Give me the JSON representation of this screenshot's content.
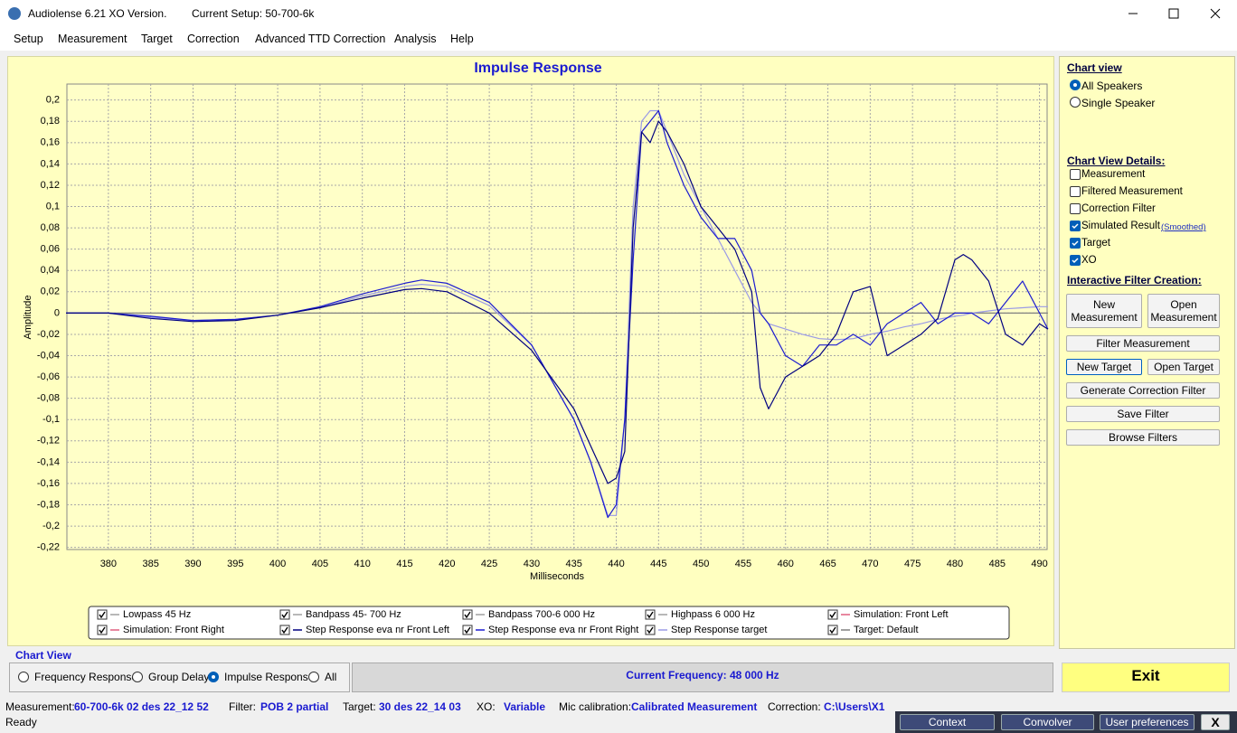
{
  "window": {
    "title": "Audiolense 6.21 XO Version.",
    "setup": "Current Setup: 50-700-6k"
  },
  "menu": [
    "Setup",
    "Measurement",
    "Target",
    "Correction",
    "Advanced TTD Correction",
    "Analysis",
    "Help"
  ],
  "chart_data": {
    "type": "line",
    "title": "Impulse Response",
    "x_label": "Milliseconds",
    "y_label": "Amplitude",
    "xlim": [
      375.1,
      490.9
    ],
    "ylim": [
      -0.222,
      0.215
    ],
    "xticks": [
      380,
      385,
      390,
      395,
      400,
      405,
      410,
      415,
      420,
      425,
      430,
      435,
      440,
      445,
      450,
      455,
      460,
      465,
      470,
      475,
      480,
      485,
      490
    ],
    "yticks": [
      {
        "value": -0.22,
        "label": "-0,22"
      },
      {
        "value": -0.2,
        "label": "-0,2"
      },
      {
        "value": -0.18,
        "label": "-0,18"
      },
      {
        "value": -0.16,
        "label": "-0,16"
      },
      {
        "value": -0.14,
        "label": "-0,14"
      },
      {
        "value": -0.12,
        "label": "-0,12"
      },
      {
        "value": -0.1,
        "label": "-0,1"
      },
      {
        "value": -0.08,
        "label": "-0,08"
      },
      {
        "value": -0.06,
        "label": "-0,06"
      },
      {
        "value": -0.04,
        "label": "-0,04"
      },
      {
        "value": -0.02,
        "label": "-0,02"
      },
      0,
      {
        "value": 0.02,
        "label": "0,02"
      },
      {
        "value": 0.04,
        "label": "0,04"
      },
      {
        "value": 0.06,
        "label": "0,06"
      },
      {
        "value": 0.08,
        "label": "0,08"
      },
      {
        "value": 0.1,
        "label": "0,1"
      },
      {
        "value": 0.12,
        "label": "0,12"
      },
      {
        "value": 0.14,
        "label": "0,14"
      },
      {
        "value": 0.16,
        "label": "0,16"
      },
      {
        "value": 0.18,
        "label": "0,18"
      },
      {
        "value": 0.2,
        "label": "0,2"
      }
    ],
    "grid": true,
    "x": [
      375,
      380,
      385,
      390,
      395,
      400,
      405,
      410,
      415,
      417,
      420,
      425,
      430,
      435,
      437,
      439,
      440,
      441,
      442,
      443,
      444,
      445,
      446,
      448,
      450,
      452,
      454,
      456,
      457,
      458,
      460,
      462,
      464,
      466,
      468,
      470,
      472,
      474,
      476,
      478,
      480,
      481,
      482,
      484,
      486,
      488,
      490,
      491
    ],
    "series": [
      {
        "name": "Target: Default",
        "color": "#808080",
        "values": [
          0,
          0,
          0,
          0,
          0,
          0,
          0,
          0,
          0,
          0,
          0,
          0,
          0,
          0,
          0,
          0,
          0,
          0,
          0,
          0,
          0,
          0,
          0,
          0,
          0,
          0,
          0,
          0,
          0,
          0,
          0,
          0,
          0,
          0,
          0,
          0,
          0,
          0,
          0,
          0,
          0,
          0,
          0,
          0,
          0,
          0,
          0,
          0
        ]
      },
      {
        "name": "Step Response target",
        "color": "#9a9ae6",
        "values": [
          0,
          0,
          -0.004,
          -0.007,
          -0.006,
          -0.002,
          0.005,
          0.016,
          0.025,
          0.027,
          0.025,
          0.007,
          -0.03,
          -0.1,
          -0.14,
          -0.19,
          -0.19,
          -0.1,
          0.1,
          0.18,
          0.19,
          0.19,
          0.17,
          0.13,
          0.1,
          0.07,
          0.04,
          0.01,
          0,
          -0.01,
          -0.015,
          -0.02,
          -0.024,
          -0.025,
          -0.024,
          -0.02,
          -0.017,
          -0.013,
          -0.01,
          -0.006,
          -0.003,
          -0.002,
          0,
          0.002,
          0.004,
          0.005,
          0.006,
          0.006
        ]
      },
      {
        "name": "Step Response eva nr Front Right",
        "color": "#1c1cd0",
        "values": [
          0,
          0,
          -0.003,
          -0.007,
          -0.006,
          -0.002,
          0.006,
          0.018,
          0.028,
          0.031,
          0.028,
          0.01,
          -0.03,
          -0.1,
          -0.14,
          -0.192,
          -0.18,
          -0.1,
          0.05,
          0.17,
          0.18,
          0.19,
          0.16,
          0.12,
          0.09,
          0.07,
          0.07,
          0.04,
          0,
          -0.01,
          -0.04,
          -0.05,
          -0.03,
          -0.03,
          -0.02,
          -0.03,
          -0.01,
          0,
          0.01,
          -0.01,
          0,
          0,
          0,
          -0.01,
          0.01,
          0.03,
          0,
          -0.015
        ]
      },
      {
        "name": "Step Response eva nr Front Left",
        "color": "#000080",
        "values": [
          0,
          0,
          -0.005,
          -0.008,
          -0.007,
          -0.002,
          0.005,
          0.014,
          0.022,
          0.023,
          0.02,
          0,
          -0.035,
          -0.09,
          -0.125,
          -0.16,
          -0.155,
          -0.13,
          0.08,
          0.17,
          0.16,
          0.18,
          0.17,
          0.14,
          0.1,
          0.08,
          0.06,
          0.02,
          -0.07,
          -0.09,
          -0.06,
          -0.05,
          -0.04,
          -0.02,
          0.02,
          0.025,
          -0.04,
          -0.03,
          -0.02,
          -0.005,
          0.05,
          0.055,
          0.05,
          0.03,
          -0.02,
          -0.03,
          -0.01,
          -0.015
        ]
      }
    ],
    "legend": [
      {
        "name": "Lowpass  45 Hz",
        "color": "#a0a0a0",
        "checked": true
      },
      {
        "name": "Bandpass  45- 700 Hz",
        "color": "#a0a0a0",
        "checked": true
      },
      {
        "name": "Bandpass  700-6 000 Hz",
        "color": "#a0a0a0",
        "checked": true
      },
      {
        "name": "Highpass  6 000 Hz",
        "color": "#a0a0a0",
        "checked": true
      },
      {
        "name": "Simulation: Front Left",
        "color": "#e06080",
        "checked": true
      },
      {
        "name": "Simulation: Front Right",
        "color": "#e06080",
        "checked": true
      },
      {
        "name": "Step Response eva nr Front Left",
        "color": "#000080",
        "checked": true
      },
      {
        "name": "Step Response eva nr Front Right",
        "color": "#1c1cd0",
        "checked": true
      },
      {
        "name": "Step Response target",
        "color": "#9a9ae6",
        "checked": true
      },
      {
        "name": "Target: Default",
        "color": "#808080",
        "checked": true
      }
    ]
  },
  "sidebar": {
    "chart_view": {
      "title": "Chart view",
      "options": [
        "All Speakers",
        "Single Speaker"
      ],
      "selected": 0
    },
    "details": {
      "title": "Chart View Details:",
      "smoothed": "(Smoothed)",
      "items": [
        {
          "label": "Measurement",
          "checked": false
        },
        {
          "label": "Filtered Measurement",
          "checked": false
        },
        {
          "label": "Correction Filter",
          "checked": false
        },
        {
          "label": "Simulated Result",
          "checked": true
        },
        {
          "label": "Target",
          "checked": true
        },
        {
          "label": "XO",
          "checked": true
        }
      ]
    },
    "filter": {
      "title": "Interactive Filter Creation:",
      "buttons": [
        "New Measurement",
        "Open Measurement",
        "Filter Measurement",
        "New Target",
        "Open Target",
        "Generate Correction Filter",
        "Save Filter",
        "Browse Filters"
      ]
    }
  },
  "view_bar": {
    "title": "Chart View",
    "options": [
      "Frequency Response",
      "Group Delay",
      "Impulse Response",
      "All"
    ],
    "selected": 2
  },
  "current_frequency": "Current Frequency: 48 000 Hz",
  "exit": "Exit",
  "status": [
    {
      "label": "Measurement:",
      "value": "60-700-6k 02 des 22_12 52"
    },
    {
      "label": "Filter:",
      "value": "POB 2 partial"
    },
    {
      "label": "Target:",
      "value": "30 des 22_14 03"
    },
    {
      "label": "XO:",
      "value": "Variable"
    },
    {
      "label": "Mic calibration:",
      "value": "Calibrated Measurement"
    },
    {
      "label": "Correction:",
      "value": "C:\\Users\\X1"
    }
  ],
  "ready": "Ready",
  "bottom_buttons": [
    "Context",
    "Convolver",
    "User preferences",
    "X"
  ]
}
